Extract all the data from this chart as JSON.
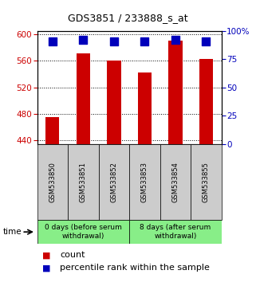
{
  "title": "GDS3851 / 233888_s_at",
  "samples": [
    "GSM533850",
    "GSM533851",
    "GSM533852",
    "GSM533853",
    "GSM533854",
    "GSM533855"
  ],
  "counts": [
    475,
    571,
    560,
    543,
    590,
    563
  ],
  "percentiles": [
    91,
    92,
    91,
    91,
    92,
    91
  ],
  "ylim_left": [
    435,
    605
  ],
  "ylim_right": [
    0,
    100
  ],
  "yticks_left": [
    440,
    480,
    520,
    560,
    600
  ],
  "yticks_right": [
    0,
    25,
    50,
    75,
    100
  ],
  "ytick_labels_right": [
    "0",
    "25",
    "50",
    "75",
    "100%"
  ],
  "bar_color": "#cc0000",
  "dot_color": "#0000bb",
  "group1_label": "0 days (before serum\nwithdrawal)",
  "group2_label": "8 days (after serum\nwithdrawal)",
  "group1_indices": [
    0,
    1,
    2
  ],
  "group2_indices": [
    3,
    4,
    5
  ],
  "group_bg_color": "#88ee88",
  "sample_bg_color": "#cccccc",
  "legend_count_label": "count",
  "legend_pct_label": "percentile rank within the sample",
  "time_label": "time",
  "background_color": "#ffffff",
  "bar_width": 0.45,
  "dot_size": 50,
  "left_color": "#cc0000",
  "right_color": "#0000bb",
  "title_fontsize": 9,
  "tick_fontsize": 7.5,
  "sample_fontsize": 6,
  "group_fontsize": 6.5,
  "legend_fontsize": 8
}
